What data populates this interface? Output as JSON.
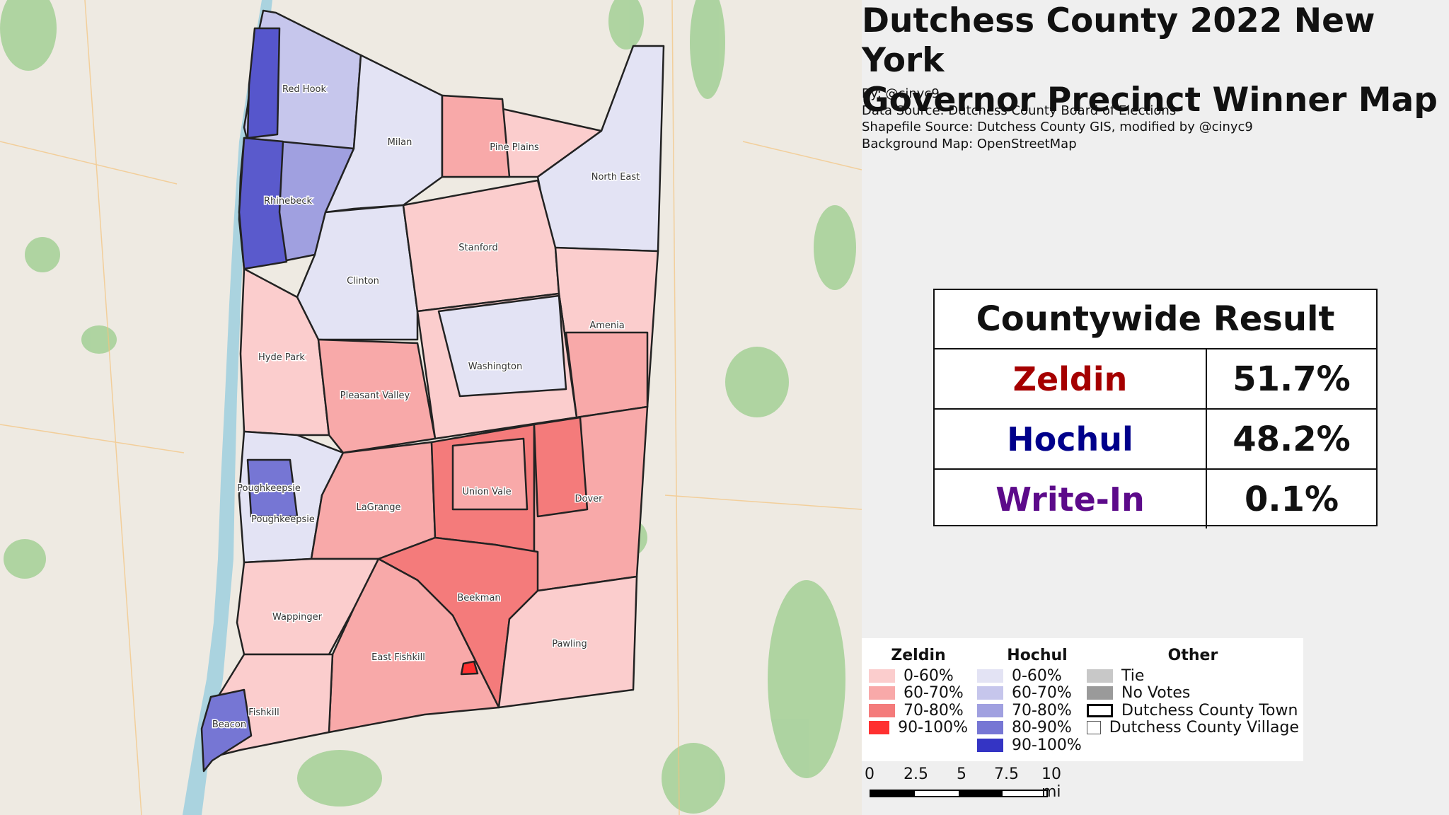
{
  "title_line1": "Dutchess County 2022 New York",
  "title_line2": "Governor Precinct Winner Map",
  "credits": {
    "by": "By: @cinyc9",
    "data_source": "Data Source: Dutchess County Board of Elections",
    "shapefile_source": "Shapefile Source: Dutchess County GIS, modified by @cinyc9",
    "background_map": "Background Map: OpenStreetMap"
  },
  "countywide": {
    "header": "Countywide Result",
    "rows": [
      {
        "name": "Zeldin",
        "value": "51.7%",
        "color": "#a50000"
      },
      {
        "name": "Hochul",
        "value": "48.2%",
        "color": "#00008b"
      },
      {
        "name": "Write-In",
        "value": "0.1%",
        "color": "#5c0a8a"
      }
    ]
  },
  "legend": {
    "zeldin": {
      "header": "Zeldin",
      "items": [
        {
          "label": "0-60%",
          "color": "#fbcdcd"
        },
        {
          "label": "60-70%",
          "color": "#f8a9a9"
        },
        {
          "label": "70-80%",
          "color": "#f47b7b"
        },
        {
          "label": "90-100%",
          "color": "#ff3030"
        }
      ]
    },
    "hochul": {
      "header": "Hochul",
      "items": [
        {
          "label": "0-60%",
          "color": "#e3e3f4"
        },
        {
          "label": "60-70%",
          "color": "#c6c6ec"
        },
        {
          "label": "70-80%",
          "color": "#a0a0e0"
        },
        {
          "label": "80-90%",
          "color": "#7676d4"
        },
        {
          "label": "90-100%",
          "color": "#3434c4"
        }
      ]
    },
    "other": {
      "header": "Other",
      "items": [
        {
          "label": "Tie",
          "color": "#c8c8c8"
        },
        {
          "label": "No Votes",
          "color": "#9a9a9a"
        },
        {
          "label": "Dutchess County Town",
          "color": "#ffffff"
        },
        {
          "label": "Dutchess County Village",
          "color": "#ffffff"
        }
      ]
    }
  },
  "scale": {
    "labels": [
      "0",
      "2.5",
      "5",
      "7.5",
      "10 mi"
    ]
  },
  "towns": [
    "Red Hook",
    "Milan",
    "Pine Plains",
    "North East",
    "Rhinebeck",
    "Stanford",
    "Clinton",
    "Amenia",
    "Hyde Park",
    "Washington",
    "Pleasant Valley",
    "Poughkeepsie",
    "Poughkeepsie",
    "LaGrange",
    "Union Vale",
    "Dover",
    "Wappinger",
    "Beekman",
    "Pawling",
    "East Fishkill",
    "Fishkill",
    "Beacon"
  ]
}
